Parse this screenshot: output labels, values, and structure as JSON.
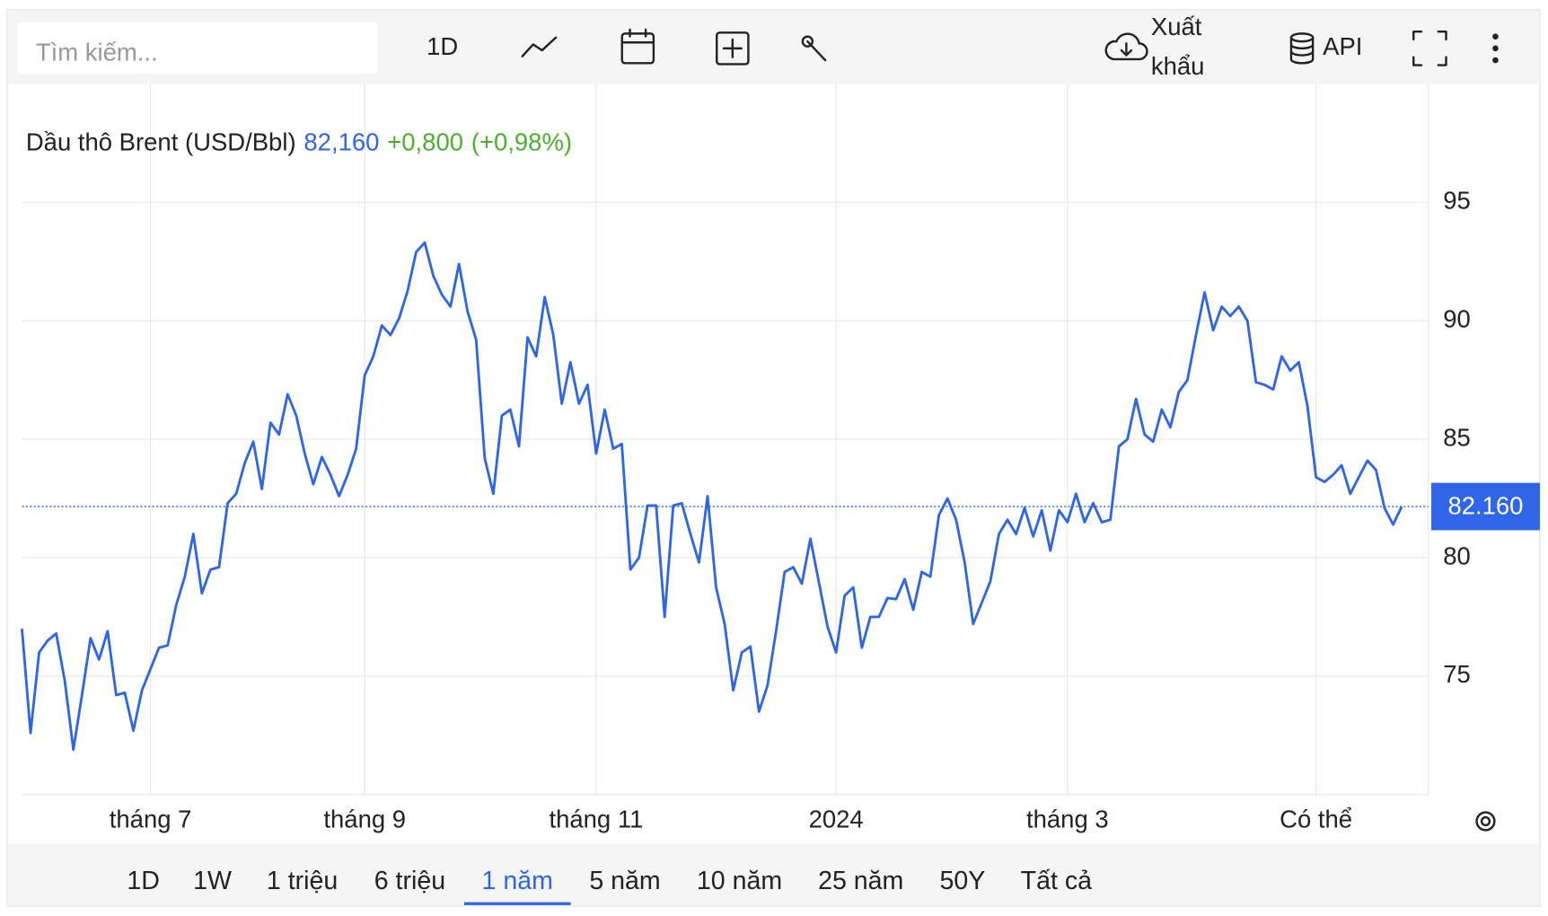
{
  "toolbar": {
    "search_placeholder": "Tìm kiếm...",
    "interval": "1D",
    "export": [
      "Xuất",
      "khẩu"
    ],
    "api": "API"
  },
  "chart_data": {
    "type": "line",
    "title": "Dầu thô Brent (USD/Bbl)",
    "price": "82,160",
    "change": "+0,800",
    "change_pct": "(+0,98%)",
    "color": "#2f66e8",
    "grid": true,
    "ylim": [
      70,
      100
    ],
    "yticks": [
      75,
      80,
      85,
      90,
      95
    ],
    "price_label": {
      "value": 82.16,
      "label": "82.160"
    },
    "categories": [
      null,
      null,
      null,
      null,
      null,
      null,
      null,
      null,
      null,
      null,
      null,
      null,
      null,
      null,
      null,
      "tháng 7",
      null,
      null,
      null,
      null,
      null,
      null,
      null,
      null,
      null,
      null,
      null,
      null,
      null,
      null,
      null,
      null,
      null,
      null,
      null,
      null,
      null,
      null,
      null,
      null,
      "tháng 9",
      null,
      null,
      null,
      null,
      null,
      null,
      null,
      null,
      null,
      null,
      null,
      null,
      null,
      null,
      null,
      null,
      null,
      null,
      null,
      null,
      null,
      null,
      null,
      null,
      null,
      null,
      "tháng 11",
      null,
      null,
      null,
      null,
      null,
      null,
      null,
      null,
      null,
      null,
      null,
      null,
      null,
      null,
      null,
      null,
      null,
      null,
      null,
      null,
      null,
      null,
      null,
      null,
      null,
      null,
      null,
      "2024",
      null,
      null,
      null,
      null,
      null,
      null,
      null,
      null,
      null,
      null,
      null,
      null,
      null,
      null,
      null,
      null,
      null,
      null,
      null,
      null,
      null,
      null,
      null,
      null,
      null,
      null,
      "tháng 3",
      null,
      null,
      null,
      null,
      null,
      null,
      null,
      null,
      null,
      null,
      null,
      null,
      null,
      null,
      null,
      null,
      null,
      null,
      null,
      null,
      null,
      null,
      null,
      null,
      null,
      null,
      null,
      null,
      "Có thể",
      null,
      null,
      null,
      null,
      null,
      null,
      null,
      null,
      null,
      null
    ],
    "values": [
      77.0,
      72.6,
      76.0,
      76.5,
      76.8,
      74.8,
      71.9,
      74.2,
      76.6,
      75.7,
      76.9,
      74.2,
      74.3,
      72.7,
      74.4,
      75.3,
      76.2,
      76.3,
      78.0,
      79.2,
      81.0,
      78.5,
      79.5,
      79.6,
      82.3,
      82.7,
      84.0,
      84.9,
      82.9,
      85.7,
      85.2,
      86.9,
      86.0,
      84.4,
      83.1,
      84.25,
      83.5,
      82.6,
      83.5,
      84.6,
      87.7,
      88.5,
      89.8,
      89.4,
      90.1,
      91.25,
      92.9,
      93.3,
      91.9,
      91.1,
      90.6,
      92.4,
      90.4,
      89.2,
      84.2,
      82.7,
      86.0,
      86.25,
      84.7,
      89.3,
      88.5,
      91.0,
      89.4,
      86.5,
      88.25,
      86.5,
      87.3,
      84.4,
      86.25,
      84.6,
      84.8,
      79.5,
      80.0,
      82.2,
      82.2,
      77.5,
      82.2,
      82.3,
      81.0,
      79.8,
      82.6,
      78.75,
      77.2,
      74.4,
      76.0,
      76.25,
      73.5,
      74.6,
      76.9,
      79.4,
      79.6,
      78.9,
      80.8,
      78.96,
      77.1,
      76.0,
      78.4,
      78.75,
      76.2,
      77.5,
      77.5,
      78.3,
      78.25,
      79.1,
      77.8,
      79.4,
      79.2,
      81.8,
      82.5,
      81.6,
      79.8,
      77.2,
      78.1,
      79.0,
      81.0,
      81.6,
      81.0,
      82.1,
      80.9,
      82.0,
      80.3,
      82.0,
      81.5,
      82.7,
      81.5,
      82.3,
      81.5,
      81.6,
      84.7,
      85.0,
      86.7,
      85.2,
      84.9,
      86.25,
      85.5,
      87.0,
      87.5,
      89.4,
      91.2,
      89.6,
      90.6,
      90.2,
      90.6,
      90.0,
      87.4,
      87.3,
      87.1,
      88.5,
      87.9,
      88.25,
      86.4,
      83.4,
      83.2,
      83.5,
      83.9,
      82.7,
      83.4,
      84.1,
      83.7,
      82.1,
      81.4,
      82.16
    ]
  },
  "ranges": {
    "items": [
      "1D",
      "1W",
      "1 triệu",
      "6 triệu",
      "1 năm",
      "5 năm",
      "10 năm",
      "25 năm",
      "50Y",
      "Tất cả"
    ],
    "active": 4
  }
}
